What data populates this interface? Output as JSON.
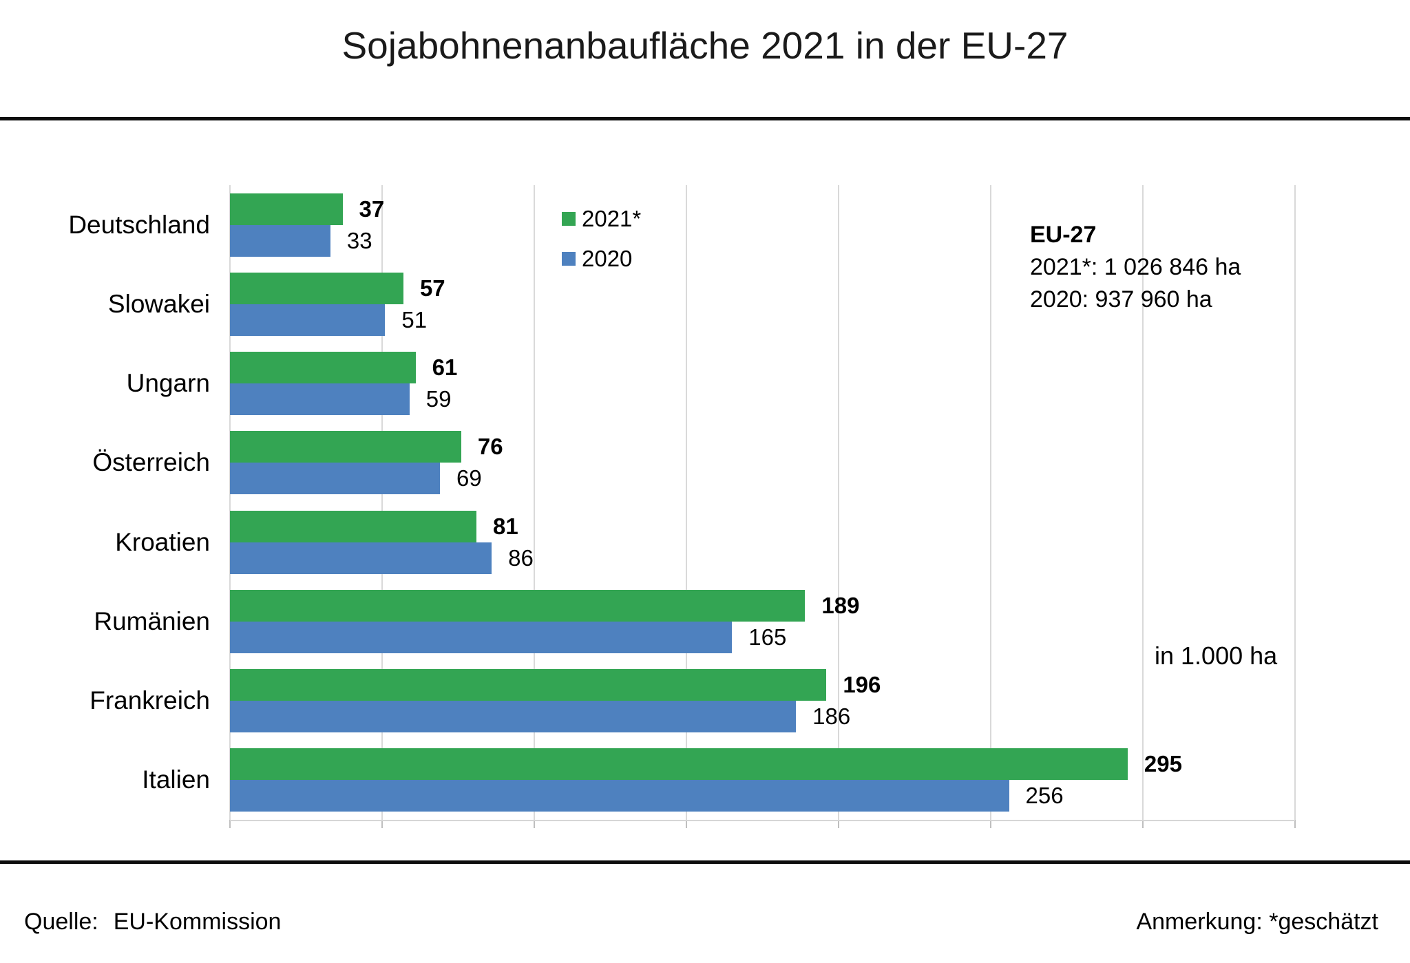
{
  "title": "Sojabohnenanbaufläche 2021 in der EU-27",
  "legend": {
    "items": [
      {
        "label": "2021*",
        "color": "#33a553"
      },
      {
        "label": "2020",
        "color": "#4e81bf"
      }
    ]
  },
  "eu_summary": {
    "heading": "EU-27",
    "line_2021": "2021*: 1 026 846 ha",
    "line_2020": "2020: 937 960 ha"
  },
  "unit_label": "in 1.000 ha",
  "footer": {
    "source_label": "Quelle:",
    "source_value": "EU-Kommission",
    "note": "Anmerkung: *geschätzt"
  },
  "chart_data": {
    "type": "bar",
    "orientation": "horizontal",
    "title": "Sojabohnenanbaufläche 2021 in der EU-27",
    "unit": "in 1.000 ha",
    "categories": [
      "Deutschland",
      "Slowakei",
      "Ungarn",
      "Österreich",
      "Kroatien",
      "Rumänien",
      "Frankreich",
      "Italien"
    ],
    "series": [
      {
        "name": "2021*",
        "color": "#33a553",
        "values": [
          37,
          57,
          61,
          76,
          81,
          189,
          196,
          295
        ]
      },
      {
        "name": "2020",
        "color": "#4e81bf",
        "values": [
          33,
          51,
          59,
          69,
          86,
          165,
          186,
          256
        ]
      }
    ],
    "xlim": [
      0,
      350
    ],
    "gridline_step": 50,
    "grid": true,
    "legend_position": "top-center-inside",
    "value_labels": true,
    "eu27_total_2021": "1 026 846 ha",
    "eu27_total_2020": "937 960 ha",
    "source": "EU-Kommission",
    "note": "*geschätzt"
  }
}
